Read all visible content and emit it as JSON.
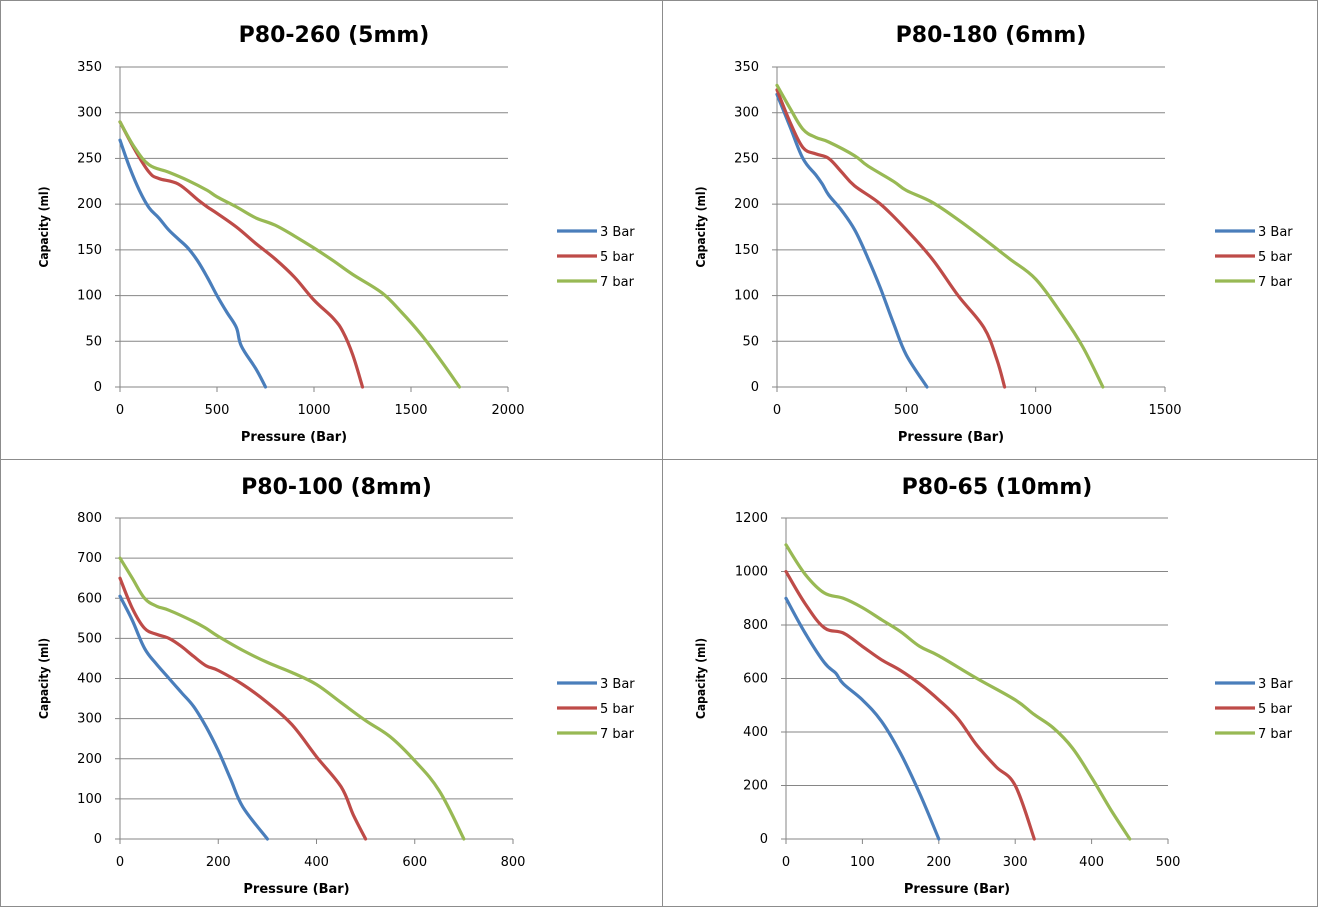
{
  "chart_data": [
    {
      "type": "line",
      "title": "P80-260 (5mm)",
      "xlabel": "Pressure (Bar)",
      "ylabel": "Capacity (ml)",
      "xlim": [
        0,
        2000
      ],
      "ylim": [
        0,
        350
      ],
      "xticks": [
        "0",
        "500",
        "1000",
        "1500",
        "2000"
      ],
      "yticks": [
        "0",
        "50",
        "100",
        "150",
        "200",
        "250",
        "300",
        "350"
      ],
      "grid": "horizontal",
      "legend": "right",
      "series": [
        {
          "name": "3 Bar",
          "color": "#4a7ebb",
          "points": [
            [
              0,
              270
            ],
            [
              50,
              240
            ],
            [
              100,
              215
            ],
            [
              150,
              196
            ],
            [
              200,
              185
            ],
            [
              250,
              172
            ],
            [
              300,
              162
            ],
            [
              350,
              152
            ],
            [
              400,
              138
            ],
            [
              450,
              120
            ],
            [
              500,
              100
            ],
            [
              550,
              82
            ],
            [
              600,
              65
            ],
            [
              625,
              45
            ],
            [
              700,
              20
            ],
            [
              750,
              0
            ]
          ]
        },
        {
          "name": "5 bar",
          "color": "#be4b48",
          "points": [
            [
              0,
              290
            ],
            [
              75,
              260
            ],
            [
              150,
              235
            ],
            [
              200,
              228
            ],
            [
              300,
              222
            ],
            [
              400,
              205
            ],
            [
              450,
              197
            ],
            [
              500,
              190
            ],
            [
              600,
              175
            ],
            [
              700,
              157
            ],
            [
              800,
              140
            ],
            [
              900,
              120
            ],
            [
              1000,
              95
            ],
            [
              1100,
              75
            ],
            [
              1150,
              60
            ],
            [
              1200,
              35
            ],
            [
              1250,
              0
            ]
          ]
        },
        {
          "name": "7 bar",
          "color": "#98b954",
          "points": [
            [
              0,
              290
            ],
            [
              75,
              262
            ],
            [
              150,
              243
            ],
            [
              250,
              235
            ],
            [
              350,
              226
            ],
            [
              450,
              215
            ],
            [
              500,
              208
            ],
            [
              600,
              197
            ],
            [
              700,
              185
            ],
            [
              800,
              177
            ],
            [
              900,
              165
            ],
            [
              1000,
              152
            ],
            [
              1100,
              138
            ],
            [
              1200,
              123
            ],
            [
              1350,
              103
            ],
            [
              1450,
              82
            ],
            [
              1550,
              58
            ],
            [
              1650,
              30
            ],
            [
              1750,
              0
            ]
          ]
        }
      ]
    },
    {
      "type": "line",
      "title": "P80-180 (6mm)",
      "xlabel": "Pressure (Bar)",
      "ylabel": "Capacity (ml)",
      "xlim": [
        0,
        1500
      ],
      "ylim": [
        0,
        350
      ],
      "xticks": [
        "0",
        "500",
        "1000",
        "1500"
      ],
      "yticks": [
        "0",
        "50",
        "100",
        "150",
        "200",
        "250",
        "300",
        "350"
      ],
      "grid": "horizontal",
      "legend": "right",
      "series": [
        {
          "name": "3 Bar",
          "color": "#4a7ebb",
          "points": [
            [
              0,
              320
            ],
            [
              50,
              285
            ],
            [
              100,
              250
            ],
            [
              150,
              232
            ],
            [
              175,
              222
            ],
            [
              200,
              210
            ],
            [
              250,
              193
            ],
            [
              300,
              172
            ],
            [
              350,
              142
            ],
            [
              400,
              108
            ],
            [
              450,
              70
            ],
            [
              500,
              35
            ],
            [
              580,
              0
            ]
          ]
        },
        {
          "name": "5 bar",
          "color": "#be4b48",
          "points": [
            [
              0,
              325
            ],
            [
              50,
              290
            ],
            [
              100,
              262
            ],
            [
              150,
              255
            ],
            [
              200,
              250
            ],
            [
              250,
              235
            ],
            [
              300,
              220
            ],
            [
              400,
              200
            ],
            [
              500,
              172
            ],
            [
              600,
              140
            ],
            [
              700,
              100
            ],
            [
              800,
              65
            ],
            [
              850,
              30
            ],
            [
              880,
              0
            ]
          ]
        },
        {
          "name": "7 bar",
          "color": "#98b954",
          "points": [
            [
              0,
              330
            ],
            [
              50,
              305
            ],
            [
              100,
              282
            ],
            [
              150,
              273
            ],
            [
              200,
              268
            ],
            [
              300,
              253
            ],
            [
              350,
              242
            ],
            [
              450,
              225
            ],
            [
              500,
              215
            ],
            [
              600,
              202
            ],
            [
              700,
              183
            ],
            [
              800,
              162
            ],
            [
              900,
              140
            ],
            [
              1000,
              118
            ],
            [
              1100,
              80
            ],
            [
              1180,
              45
            ],
            [
              1260,
              0
            ]
          ]
        }
      ]
    },
    {
      "type": "line",
      "title": "P80-100 (8mm)",
      "xlabel": "Pressure (Bar)",
      "ylabel": "Capacity (ml)",
      "xlim": [
        0,
        800
      ],
      "ylim": [
        0,
        800
      ],
      "xticks": [
        "0",
        "200",
        "400",
        "600",
        "800"
      ],
      "yticks": [
        "0",
        "100",
        "200",
        "300",
        "400",
        "500",
        "600",
        "700",
        "800"
      ],
      "grid": "horizontal",
      "legend": "right",
      "series": [
        {
          "name": "3 Bar",
          "color": "#4a7ebb",
          "points": [
            [
              0,
              605
            ],
            [
              25,
              545
            ],
            [
              50,
              475
            ],
            [
              75,
              435
            ],
            [
              100,
              400
            ],
            [
              125,
              365
            ],
            [
              150,
              330
            ],
            [
              175,
              280
            ],
            [
              200,
              220
            ],
            [
              225,
              150
            ],
            [
              250,
              80
            ],
            [
              300,
              0
            ]
          ]
        },
        {
          "name": "5 bar",
          "color": "#be4b48",
          "points": [
            [
              0,
              650
            ],
            [
              25,
              575
            ],
            [
              50,
              525
            ],
            [
              75,
              510
            ],
            [
              100,
              500
            ],
            [
              125,
              480
            ],
            [
              150,
              455
            ],
            [
              175,
              432
            ],
            [
              200,
              420
            ],
            [
              250,
              385
            ],
            [
              300,
              340
            ],
            [
              350,
              285
            ],
            [
              400,
              205
            ],
            [
              450,
              130
            ],
            [
              475,
              60
            ],
            [
              500,
              0
            ]
          ]
        },
        {
          "name": "7 bar",
          "color": "#98b954",
          "points": [
            [
              0,
              700
            ],
            [
              25,
              650
            ],
            [
              50,
              600
            ],
            [
              75,
              580
            ],
            [
              100,
              570
            ],
            [
              150,
              542
            ],
            [
              175,
              525
            ],
            [
              200,
              505
            ],
            [
              250,
              470
            ],
            [
              300,
              440
            ],
            [
              350,
              415
            ],
            [
              400,
              385
            ],
            [
              450,
              340
            ],
            [
              500,
              295
            ],
            [
              550,
              255
            ],
            [
              600,
              195
            ],
            [
              650,
              120
            ],
            [
              700,
              0
            ]
          ]
        }
      ]
    },
    {
      "type": "line",
      "title": "P80-65 (10mm)",
      "xlabel": "Pressure (Bar)",
      "ylabel": "Capacity (ml)",
      "xlim": [
        0,
        500
      ],
      "ylim": [
        0,
        1200
      ],
      "xticks": [
        "0",
        "100",
        "200",
        "300",
        "400",
        "500"
      ],
      "yticks": [
        "0",
        "200",
        "400",
        "600",
        "800",
        "1000",
        "1200"
      ],
      "grid": "horizontal",
      "legend": "right",
      "series": [
        {
          "name": "3 Bar",
          "color": "#4a7ebb",
          "points": [
            [
              0,
              900
            ],
            [
              25,
              770
            ],
            [
              50,
              660
            ],
            [
              65,
              620
            ],
            [
              75,
              580
            ],
            [
              100,
              520
            ],
            [
              125,
              440
            ],
            [
              150,
              320
            ],
            [
              175,
              170
            ],
            [
              200,
              0
            ]
          ]
        },
        {
          "name": "5 bar",
          "color": "#be4b48",
          "points": [
            [
              0,
              1000
            ],
            [
              25,
              880
            ],
            [
              50,
              790
            ],
            [
              75,
              770
            ],
            [
              100,
              720
            ],
            [
              125,
              670
            ],
            [
              150,
              630
            ],
            [
              175,
              580
            ],
            [
              200,
              520
            ],
            [
              225,
              450
            ],
            [
              250,
              350
            ],
            [
              275,
              270
            ],
            [
              300,
              200
            ],
            [
              325,
              0
            ]
          ]
        },
        {
          "name": "7 bar",
          "color": "#98b954",
          "points": [
            [
              0,
              1100
            ],
            [
              25,
              990
            ],
            [
              50,
              920
            ],
            [
              75,
              900
            ],
            [
              100,
              865
            ],
            [
              125,
              820
            ],
            [
              150,
              775
            ],
            [
              175,
              720
            ],
            [
              200,
              685
            ],
            [
              250,
              600
            ],
            [
              300,
              520
            ],
            [
              325,
              465
            ],
            [
              350,
              415
            ],
            [
              375,
              340
            ],
            [
              400,
              230
            ],
            [
              425,
              110
            ],
            [
              450,
              0
            ]
          ]
        }
      ]
    }
  ]
}
